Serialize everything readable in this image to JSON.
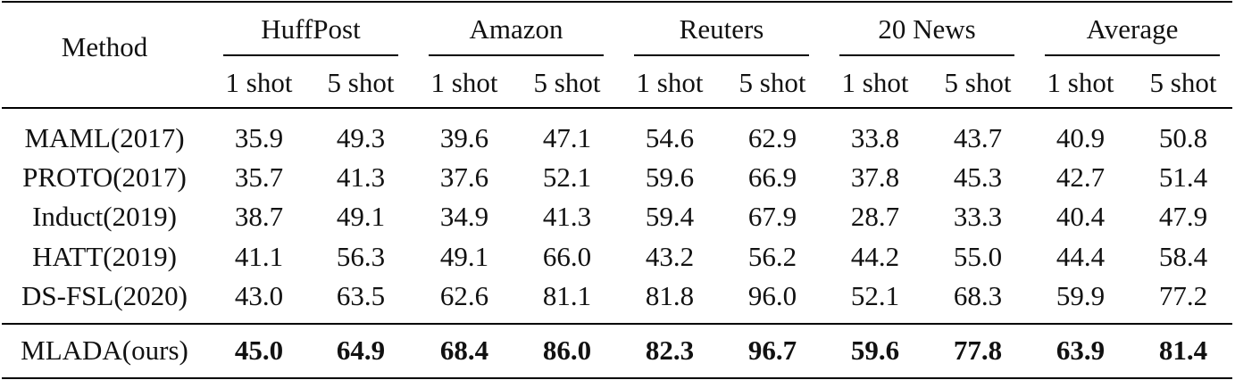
{
  "table": {
    "method_header": "Method",
    "groups": [
      "HuffPost",
      "Amazon",
      "Reuters",
      "20 News",
      "Average"
    ],
    "subheaders": [
      "1 shot",
      "5 shot",
      "1 shot",
      "5 shot",
      "1 shot",
      "5 shot",
      "1 shot",
      "5 shot",
      "1 shot",
      "5 shot"
    ],
    "rows": [
      {
        "method": "MAML(2017)",
        "values": [
          "35.9",
          "49.3",
          "39.6",
          "47.1",
          "54.6",
          "62.9",
          "33.8",
          "43.7",
          "40.9",
          "50.8"
        ]
      },
      {
        "method": "PROTO(2017)",
        "values": [
          "35.7",
          "41.3",
          "37.6",
          "52.1",
          "59.6",
          "66.9",
          "37.8",
          "45.3",
          "42.7",
          "51.4"
        ]
      },
      {
        "method": "Induct(2019)",
        "values": [
          "38.7",
          "49.1",
          "34.9",
          "41.3",
          "59.4",
          "67.9",
          "28.7",
          "33.3",
          "40.4",
          "47.9"
        ]
      },
      {
        "method": "HATT(2019)",
        "values": [
          "41.1",
          "56.3",
          "49.1",
          "66.0",
          "43.2",
          "56.2",
          "44.2",
          "55.0",
          "44.4",
          "58.4"
        ]
      },
      {
        "method": "DS-FSL(2020)",
        "values": [
          "43.0",
          "63.5",
          "62.6",
          "81.1",
          "81.8",
          "96.0",
          "52.1",
          "68.3",
          "59.9",
          "77.2"
        ]
      }
    ],
    "best_row": {
      "method": "MLADA(ours)",
      "values": [
        "45.0",
        "64.9",
        "68.4",
        "86.0",
        "82.3",
        "96.7",
        "59.6",
        "77.8",
        "63.9",
        "81.4"
      ]
    }
  }
}
